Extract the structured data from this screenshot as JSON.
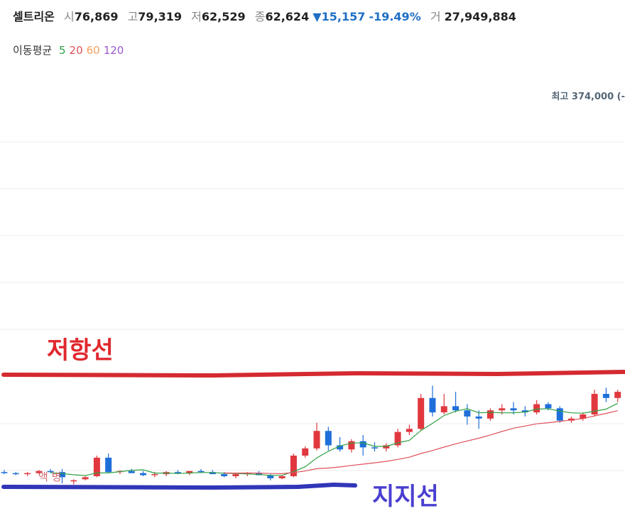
{
  "header": {
    "name": "셀트리온",
    "fields": [
      {
        "label": "시",
        "value": "76,869"
      },
      {
        "label": "고",
        "value": "79,319"
      },
      {
        "label": "저",
        "value": "62,529"
      },
      {
        "label": "종",
        "value": "62,624"
      }
    ],
    "change": "▼15,157",
    "change_pct": "-19.49%",
    "volume_label": "거",
    "volume": "27,949,884"
  },
  "legend": {
    "title": "이동평균",
    "periods": [
      5,
      20,
      60,
      120
    ],
    "colors": [
      "#2ea043",
      "#e0505a",
      "#f0a060",
      "#9b59d0"
    ]
  },
  "chart_data": {
    "type": "candlestick",
    "high_note": "최고 374,000 (-",
    "annotations": [
      "저항선",
      "지지선"
    ],
    "badge": "액 병",
    "up_color": "#e0383e",
    "down_color": "#1e6fd9",
    "ylim": [
      0,
      400000
    ],
    "open": [
      24000,
      23000,
      22000,
      23000,
      25000,
      24000,
      15000,
      17000,
      20000,
      38000,
      24000,
      25000,
      23000,
      21000,
      22000,
      24000,
      23000,
      25000,
      24000,
      22000,
      20000,
      22000,
      23000,
      21000,
      18000,
      20000,
      40000,
      47000,
      64000,
      50000,
      46000,
      54000,
      48000,
      47000,
      50000,
      63000,
      66000,
      96000,
      82000,
      88000,
      84000,
      78000,
      76000,
      84000,
      86000,
      84000,
      82000,
      90000,
      86000,
      74000,
      76000,
      80000,
      100000,
      96000
    ],
    "high": [
      26000,
      24000,
      24000,
      26000,
      27000,
      27000,
      17000,
      20000,
      40000,
      42000,
      26000,
      27000,
      25000,
      24000,
      25000,
      26000,
      25000,
      27000,
      26000,
      24000,
      23000,
      24000,
      25000,
      22000,
      21000,
      42000,
      49000,
      72000,
      68000,
      58000,
      56000,
      60000,
      53000,
      52000,
      66000,
      70000,
      100000,
      108000,
      100000,
      102000,
      90000,
      84000,
      86000,
      90000,
      92000,
      88000,
      94000,
      92000,
      88000,
      78000,
      82000,
      104000,
      106000,
      104000
    ],
    "low": [
      22000,
      21000,
      20000,
      22000,
      23000,
      13000,
      12000,
      16000,
      19000,
      23000,
      22000,
      23000,
      20000,
      19000,
      20000,
      22000,
      21000,
      23000,
      22000,
      19000,
      18000,
      20000,
      21000,
      16000,
      17000,
      19000,
      38000,
      45000,
      45000,
      44000,
      43000,
      40000,
      44000,
      44000,
      48000,
      60000,
      64000,
      78000,
      80000,
      82000,
      70000,
      66000,
      74000,
      80000,
      80000,
      78000,
      80000,
      84000,
      72000,
      72000,
      74000,
      78000,
      92000,
      92000
    ],
    "close": [
      23000,
      22000,
      23000,
      25000,
      24000,
      19000,
      16000,
      19000,
      38000,
      24000,
      25000,
      23000,
      21000,
      22000,
      24000,
      23000,
      25000,
      24000,
      22000,
      20000,
      22000,
      23000,
      21000,
      18000,
      20000,
      40000,
      47000,
      64000,
      50000,
      46000,
      54000,
      48000,
      47000,
      50000,
      63000,
      66000,
      96000,
      82000,
      88000,
      84000,
      78000,
      76000,
      84000,
      86000,
      84000,
      82000,
      90000,
      86000,
      74000,
      76000,
      80000,
      100000,
      96000,
      102000
    ]
  }
}
